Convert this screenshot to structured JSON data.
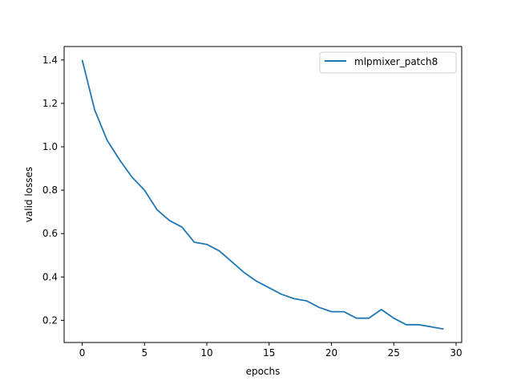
{
  "chart_data": {
    "type": "line",
    "xlabel": "epochs",
    "ylabel": "valid losses",
    "xlim": [
      -1.45,
      30.45
    ],
    "ylim": [
      0.098,
      1.462
    ],
    "xticks": [
      0,
      5,
      10,
      15,
      20,
      25,
      30
    ],
    "yticks": [
      0.2,
      0.4,
      0.6,
      0.8,
      1.0,
      1.2,
      1.4
    ],
    "legend_position": "top-right",
    "grid": false,
    "series": [
      {
        "name": "mlpmixer_patch8",
        "color": "#1f77b4",
        "x": [
          0,
          1,
          2,
          3,
          4,
          5,
          6,
          7,
          8,
          9,
          10,
          11,
          12,
          13,
          14,
          15,
          16,
          17,
          18,
          19,
          20,
          21,
          22,
          23,
          24,
          25,
          26,
          27,
          28,
          29
        ],
        "values": [
          1.4,
          1.17,
          1.03,
          0.94,
          0.86,
          0.8,
          0.71,
          0.66,
          0.63,
          0.56,
          0.55,
          0.52,
          0.47,
          0.42,
          0.38,
          0.35,
          0.32,
          0.3,
          0.29,
          0.26,
          0.24,
          0.24,
          0.21,
          0.21,
          0.25,
          0.21,
          0.18,
          0.18,
          0.17,
          0.16
        ]
      }
    ]
  }
}
